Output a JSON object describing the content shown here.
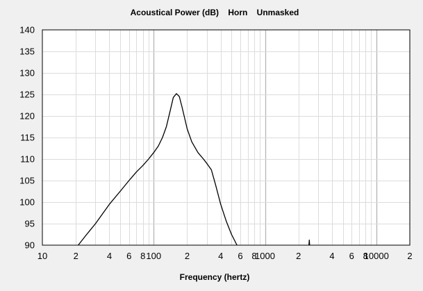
{
  "chart_data": {
    "type": "line",
    "title": "Acoustical Power (dB)    Horn    Unmasked",
    "xlabel": "Frequency (hertz)",
    "ylabel": "",
    "x_scale": "log",
    "xlim": [
      10,
      20000
    ],
    "ylim": [
      90,
      140
    ],
    "grid": true,
    "legend": "none",
    "x_tick_labels": [
      {
        "value": 10,
        "label": "10"
      },
      {
        "value": 20,
        "label": "2"
      },
      {
        "value": 40,
        "label": "4"
      },
      {
        "value": 60,
        "label": "6"
      },
      {
        "value": 80,
        "label": "8"
      },
      {
        "value": 100,
        "label": "100"
      },
      {
        "value": 200,
        "label": "2"
      },
      {
        "value": 400,
        "label": "4"
      },
      {
        "value": 600,
        "label": "6"
      },
      {
        "value": 800,
        "label": "8"
      },
      {
        "value": 1000,
        "label": "1000"
      },
      {
        "value": 2000,
        "label": "2"
      },
      {
        "value": 4000,
        "label": "4"
      },
      {
        "value": 6000,
        "label": "6"
      },
      {
        "value": 8000,
        "label": "8"
      },
      {
        "value": 10000,
        "label": "10000"
      },
      {
        "value": 20000,
        "label": "2"
      }
    ],
    "y_ticks": [
      90,
      95,
      100,
      105,
      110,
      115,
      120,
      125,
      130,
      135,
      140
    ],
    "series": [
      {
        "color": "#000000",
        "x": [
          21,
          25,
          30,
          40,
          50,
          60,
          70,
          80,
          90,
          100,
          110,
          120,
          130,
          140,
          150,
          160,
          170,
          180,
          200,
          220,
          250,
          280,
          300,
          330,
          360,
          400,
          450,
          500,
          560
        ],
        "y": [
          90,
          92.5,
          95,
          99.5,
          102.5,
          105,
          107,
          108.5,
          110,
          111.5,
          113,
          115,
          117.5,
          121,
          124.3,
          125.2,
          124.5,
          122,
          117,
          114,
          111.5,
          110,
          109,
          107.5,
          104,
          99.5,
          95.5,
          92.5,
          90
        ]
      },
      {
        "color": "#000000",
        "x": [
          2480,
          2490,
          2500,
          2510,
          2520
        ],
        "y": [
          90,
          90.5,
          91.2,
          90.5,
          90
        ]
      }
    ]
  }
}
